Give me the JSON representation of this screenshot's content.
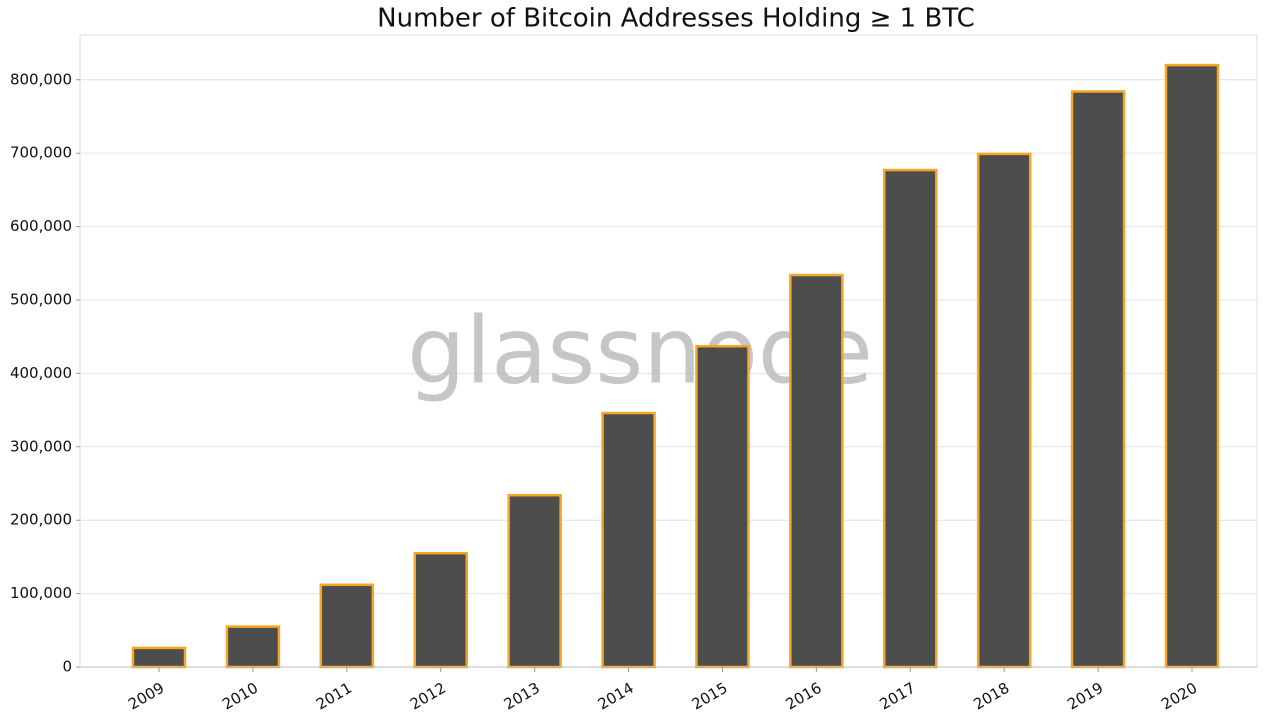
{
  "chart_data": {
    "type": "bar",
    "title": "Number of Bitcoin Addresses Holding ≥ 1 BTC",
    "watermark": "glassnode",
    "categories": [
      "2009",
      "2010",
      "2011",
      "2012",
      "2013",
      "2014",
      "2015",
      "2016",
      "2017",
      "2018",
      "2019",
      "2020"
    ],
    "values": [
      26000,
      55000,
      112000,
      155000,
      234000,
      346000,
      437000,
      534000,
      677000,
      699000,
      784000,
      820000
    ],
    "color": "#474747",
    "edge_color": "#f5a623",
    "ylim": [
      0,
      861000
    ],
    "yticks": [
      0,
      {
        "value": 100000,
        "label": "100,000"
      },
      {
        "value": 200000,
        "label": "200,000"
      },
      {
        "value": 300000,
        "label": "300,000"
      },
      {
        "value": 400000,
        "label": "400,000"
      },
      {
        "value": 500000,
        "label": "500,000"
      },
      {
        "value": 600000,
        "label": "600,000"
      },
      {
        "value": 700000,
        "label": "700,000"
      },
      {
        "value": 800000,
        "label": "800,000"
      }
    ],
    "grid": true
  }
}
